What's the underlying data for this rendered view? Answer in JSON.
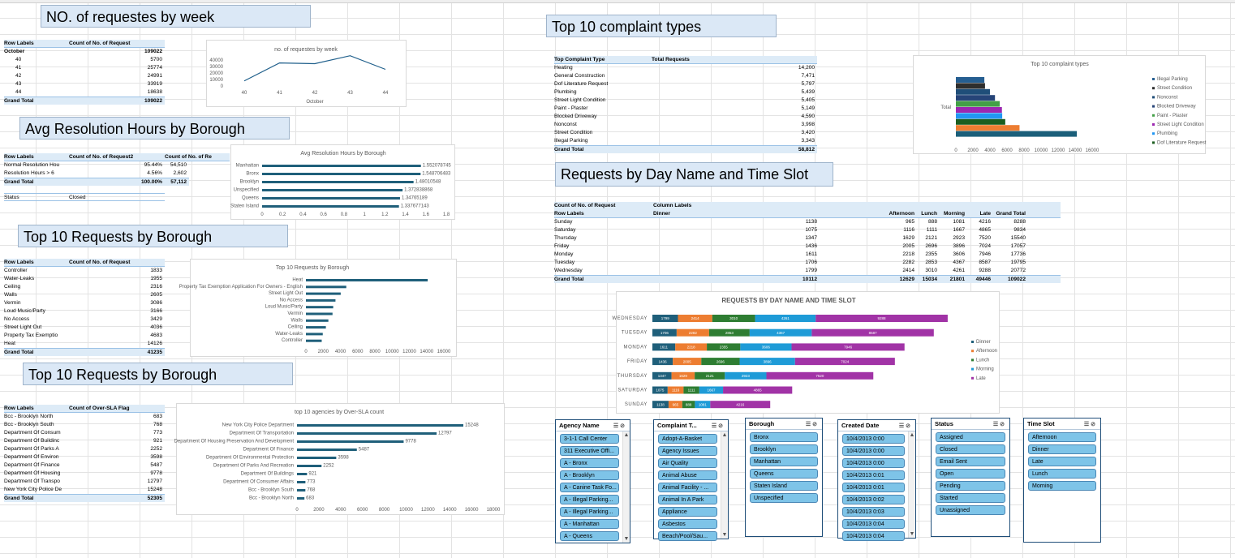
{
  "titles": {
    "week": "NO.  of requestes by week",
    "avg": "Avg Resolution Hours by Borough",
    "top10a": "Top 10 Requests by Borough",
    "top10b": "Top 10 Requests by Borough",
    "complaint": "Top 10 complaint types",
    "dayname": "Requests by Day Name and Time Slot"
  },
  "pivot_week": {
    "h1": "Row Labels",
    "h2": "Count of No. of Request",
    "group": "October",
    "group_total": "109022",
    "rows": [
      [
        "40",
        "5700"
      ],
      [
        "41",
        "25774"
      ],
      [
        "42",
        "24991"
      ],
      [
        "43",
        "33919"
      ],
      [
        "44",
        "18638"
      ]
    ],
    "total_label": "Grand Total",
    "total": "109022"
  },
  "pivot_avg": {
    "h1": "Row Labels",
    "h2": "Count of No. of Request2",
    "h3": "Count of No. of Re",
    "rows": [
      [
        "Normal Resolution Hou",
        "95.44%",
        "54,510"
      ],
      [
        "Resolution Hours > 6",
        "4.56%",
        "2,602"
      ]
    ],
    "total_label": "Grand Total",
    "total_pct": "100.00%",
    "total": "57,112",
    "status_label": "Status",
    "status_value": "Closed"
  },
  "pivot_top10": {
    "h1": "Row Labels",
    "h2": "Count of No. of Request",
    "rows": [
      [
        "Controller",
        "1833"
      ],
      [
        "Water-Leaks",
        "1955"
      ],
      [
        "Ceiling",
        "2316"
      ],
      [
        "Walls",
        "2605"
      ],
      [
        "Vermin",
        "3086"
      ],
      [
        "Loud Music/Party",
        "3166"
      ],
      [
        "No Access",
        "3429"
      ],
      [
        "Street Light Out",
        "4036"
      ],
      [
        "Property Tax Exemptio",
        "4683"
      ],
      [
        "Heat",
        "14126"
      ]
    ],
    "total_label": "Grand Total",
    "total": "41235"
  },
  "pivot_sla": {
    "h1": "Row Labels",
    "h2": "Count of Over-SLA Flag",
    "rows": [
      [
        "Bcc - Brooklyn North",
        "683"
      ],
      [
        "Bcc - Brooklyn South",
        "768"
      ],
      [
        "Department Of Consum",
        "773"
      ],
      [
        "Department Of Buildinc",
        "921"
      ],
      [
        "Department Of Parks A",
        "2252"
      ],
      [
        "Department Of Environ",
        "3598"
      ],
      [
        "Department Of Finance",
        "5487"
      ],
      [
        "Department Of Housing",
        "9778"
      ],
      [
        "Department Of Transpo",
        "12797"
      ],
      [
        "New York City Police De",
        "15248"
      ]
    ],
    "total_label": "Grand Total",
    "total": "52305"
  },
  "pivot_complaint": {
    "h1": "Top Complaint Type",
    "h2": "Total Requests",
    "rows": [
      [
        "Heating",
        "14,200"
      ],
      [
        "General Construction",
        "7,471"
      ],
      [
        "Dof Literature Request",
        "5,797"
      ],
      [
        "Plumbing",
        "5,439"
      ],
      [
        "Street Light Condition",
        "5,405"
      ],
      [
        "Paint - Plaster",
        "5,149"
      ],
      [
        "Blocked Driveway",
        "4,590"
      ],
      [
        "Nonconst",
        "3,998"
      ],
      [
        "Street Condition",
        "3,420"
      ],
      [
        "Illegal Parking",
        "3,343"
      ]
    ],
    "total_label": "Grand Total",
    "total": "58,812"
  },
  "pivot_day": {
    "h1": "Count of No. of Request",
    "h2": "Column Labels",
    "rl": "Row Labels",
    "cols": [
      "Dinner",
      "Afternoon",
      "Lunch",
      "Morning",
      "Late",
      "Grand Total"
    ],
    "rows": [
      [
        "Sunday",
        "1138",
        "965",
        "888",
        "1081",
        "4216",
        "8288"
      ],
      [
        "Saturday",
        "1075",
        "1116",
        "1111",
        "1667",
        "4865",
        "9834"
      ],
      [
        "Thursday",
        "1347",
        "1629",
        "2121",
        "2923",
        "7520",
        "15540"
      ],
      [
        "Friday",
        "1436",
        "2005",
        "2696",
        "3896",
        "7024",
        "17057"
      ],
      [
        "Monday",
        "1611",
        "2218",
        "2355",
        "3606",
        "7946",
        "17736"
      ],
      [
        "Tuesday",
        "1706",
        "2282",
        "2853",
        "4367",
        "8587",
        "19795"
      ],
      [
        "Wednesday",
        "1799",
        "2414",
        "3010",
        "4261",
        "9288",
        "20772"
      ]
    ],
    "total_label": "Grand Total",
    "totals": [
      "10112",
      "12629",
      "15034",
      "21801",
      "49446",
      "109022"
    ]
  },
  "chart_data": [
    {
      "type": "line",
      "title": "no. of requestes by week",
      "x": [
        "40",
        "41",
        "42",
        "43",
        "44"
      ],
      "values": [
        5700,
        25774,
        24991,
        33919,
        18638
      ],
      "xlabel": "October",
      "ylim": [
        0,
        40000
      ],
      "yticks": [
        "40000",
        "30000",
        "20000",
        "10000",
        "0"
      ]
    },
    {
      "type": "bar",
      "title": "Avg Resolution Hours by Borough",
      "categories": [
        "Manhattan",
        "Bronx",
        "Brooklyn",
        "Unspecified",
        "Queens",
        "Staten Island"
      ],
      "values": [
        1.552078745,
        1.548706483,
        1.48010548,
        1.372838868,
        1.34765189,
        1.337677143
      ],
      "labels": [
        "1.552078745",
        "1.548706483",
        "1.48010548",
        "1.372838868",
        "1.34765189",
        "1.337677143"
      ],
      "ticks": [
        "0",
        "0.2",
        "0.4",
        "0.6",
        "0.8",
        "1",
        "1.2",
        "1.4",
        "1.6",
        "1.8"
      ],
      "xlim": [
        0,
        1.8
      ]
    },
    {
      "type": "bar",
      "title": "Top 10 Requests by Borough",
      "categories": [
        "Heat",
        "Property Tax Exemption Application For Owners - English",
        "Street Light Out",
        "No Access",
        "Loud Music/Party",
        "Vermin",
        "Walls",
        "Ceiling",
        "Water-Leaks",
        "Controller"
      ],
      "values": [
        14126,
        4683,
        4036,
        3429,
        3166,
        3086,
        2605,
        2316,
        1955,
        1833
      ],
      "ticks": [
        "0",
        "2000",
        "4000",
        "6000",
        "8000",
        "10000",
        "12000",
        "14000",
        "16000"
      ],
      "xlim": [
        0,
        16000
      ]
    },
    {
      "type": "bar",
      "title": "top 10 agencies by Over-SLA count",
      "categories": [
        "New York City Police Department",
        "Department Of Transportation",
        "Department Of Housing Preservation And Development",
        "Department Of Finance",
        "Department Of Environmental Protection",
        "Department Of Parks And Recreation",
        "Department Of Buildings",
        "Department Of Consumer Affairs",
        "Bcc - Brooklyn South",
        "Bcc - Brooklyn North"
      ],
      "values": [
        15248,
        12797,
        9778,
        5487,
        3598,
        2252,
        921,
        773,
        768,
        683
      ],
      "labels": [
        "15248",
        "12797",
        "9778",
        "5487",
        "3598",
        "2252",
        "921",
        "773",
        "768",
        "683"
      ],
      "ticks": [
        "0",
        "2000",
        "4000",
        "6000",
        "8000",
        "10000",
        "12000",
        "14000",
        "16000",
        "18000"
      ],
      "xlim": [
        0,
        18000
      ]
    },
    {
      "type": "bar",
      "title": "Top 10 complaint types",
      "category": "Total",
      "series": [
        {
          "name": "Illegal Parking",
          "value": 3343,
          "color": "#255e91"
        },
        {
          "name": "Street Condition",
          "value": 3420,
          "color": "#2e2e2e"
        },
        {
          "name": "Nonconst",
          "value": 3998,
          "color": "#1f4e79"
        },
        {
          "name": "Blocked Driveway",
          "value": 4590,
          "color": "#264478"
        },
        {
          "name": "Paint - Plaster",
          "value": 5149,
          "color": "#43a047"
        },
        {
          "name": "Street Light Condition",
          "value": 5405,
          "color": "#9c27b0"
        },
        {
          "name": "Plumbing",
          "value": 5439,
          "color": "#2196f3"
        },
        {
          "name": "Dof Literature Request",
          "value": 5797,
          "color": "#1b5e20"
        },
        {
          "name": "General Construction",
          "value": 7471,
          "color": "#ed7d31"
        },
        {
          "name": "Heating",
          "value": 14200,
          "color": "#1b5f7a"
        }
      ],
      "legend": [
        "Illegal Parking",
        "Street Condition",
        "Nonconst",
        "Blocked Driveway",
        "Paint - Plaster",
        "Street Light Condition",
        "Plumbing",
        "Dof Literature Request"
      ],
      "ticks": [
        "0",
        "2000",
        "4000",
        "6000",
        "8000",
        "10000",
        "12000",
        "14000",
        "16000"
      ],
      "xlim": [
        0,
        16000
      ]
    },
    {
      "type": "bar",
      "title": "REQUESTS BY DAY NAME AND TIME SLOT",
      "categories": [
        "WEDNESDAY",
        "TUESDAY",
        "MONDAY",
        "FRIDAY",
        "THURSDAY",
        "SATURDAY",
        "SUNDAY"
      ],
      "series": [
        {
          "name": "Dinner",
          "color": "#1f5f7a",
          "values": [
            1799,
            1706,
            1611,
            1436,
            1347,
            1075,
            1138
          ]
        },
        {
          "name": "Afternoon",
          "color": "#ed7d31",
          "values": [
            2414,
            2282,
            2218,
            2005,
            1629,
            1116,
            965
          ]
        },
        {
          "name": "Lunch",
          "color": "#2e7d32",
          "values": [
            3010,
            2853,
            2355,
            2696,
            2121,
            1111,
            888
          ]
        },
        {
          "name": "Morning",
          "color": "#1e9bd7",
          "values": [
            4261,
            4367,
            3606,
            3896,
            2923,
            1667,
            1081
          ]
        },
        {
          "name": "Late",
          "color": "#a133a6",
          "values": [
            9288,
            8587,
            7946,
            7024,
            7520,
            4865,
            4216
          ]
        }
      ],
      "legend": [
        "Dinner",
        "Afternoon",
        "Lunch",
        "Morning",
        "Late"
      ]
    }
  ],
  "slicers": [
    {
      "title": "Agency Name",
      "items": [
        "3-1-1 Call Center",
        "311 Executive Offi...",
        "A - Bronx",
        "A - Brooklyn",
        "A - Canine Task Fo...",
        "A - Illegal Parking...",
        "A - Illegal Parking...",
        "A - Manhattan",
        "A - Queens"
      ]
    },
    {
      "title": "Complaint T...",
      "items": [
        "Adopt-A-Basket",
        "Agency Issues",
        "Air Quality",
        "Animal Abuse",
        "Animal Facility - ...",
        "Animal In A Park",
        "Appliance",
        "Asbestos",
        "Beach/Pool/Sau..."
      ]
    },
    {
      "title": "Borough",
      "items": [
        "Bronx",
        "Brooklyn",
        "Manhattan",
        "Queens",
        "Staten Island",
        "Unspecified"
      ]
    },
    {
      "title": "Created Date",
      "items": [
        "10/4/2013 0:00",
        "10/4/2013 0:00",
        "10/4/2013 0:00",
        "10/4/2013 0:01",
        "10/4/2013 0:01",
        "10/4/2013 0:02",
        "10/4/2013 0:03",
        "10/4/2013 0:04",
        "10/4/2013 0:04"
      ]
    },
    {
      "title": "Status",
      "items": [
        "Assigned",
        "Closed",
        "Email Sent",
        "Open",
        "Pending",
        "Started",
        "Unassigned"
      ]
    },
    {
      "title": "Time Slot",
      "items": [
        "Afternoon",
        "Dinner",
        "Late",
        "Lunch",
        "Morning"
      ]
    }
  ],
  "colors": {
    "bar": "#1f5f7a",
    "header": "#ddebf7",
    "slicer_item": "#7ec4e8"
  }
}
